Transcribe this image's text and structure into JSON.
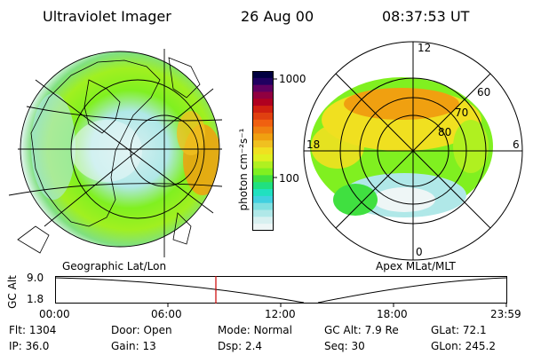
{
  "header": {
    "instrument": "Ultraviolet Imager",
    "date": "26 Aug 00",
    "time": "08:37:53 UT"
  },
  "left_panel": {
    "label": "Geographic Lat/Lon"
  },
  "right_panel": {
    "label": "Apex MLat/MLT",
    "mlt_labels": {
      "top": "12",
      "left": "18",
      "right": "6",
      "bottom": "0"
    },
    "lat_labels": [
      "60",
      "70",
      "80"
    ]
  },
  "colorbar": {
    "unit_label": "photon cm⁻²s⁻¹",
    "tick_labels": [
      "1000",
      "100"
    ],
    "colors": [
      "#000040",
      "#200060",
      "#600060",
      "#900040",
      "#b00020",
      "#d02010",
      "#e04010",
      "#f06010",
      "#f08010",
      "#f0a010",
      "#f0c020",
      "#f0e020",
      "#e0f020",
      "#b0f020",
      "#80f020",
      "#40e040",
      "#20e080",
      "#20e0c0",
      "#40d0e0",
      "#80e0e0",
      "#b0e8e8",
      "#d8f0f0",
      "#eef6f6"
    ]
  },
  "altitude_strip": {
    "axis_label": "GC Alt",
    "y_ticks": [
      "9.0",
      "1.8"
    ],
    "x_ticks": [
      "00:00",
      "06:00",
      "12:00",
      "18:00",
      "23:59"
    ],
    "marker_color": "#cc0000"
  },
  "info": {
    "row1": [
      {
        "label": "Flt:",
        "value": "1304"
      },
      {
        "label": "Door:",
        "value": "Open"
      },
      {
        "label": "Mode:",
        "value": "Normal"
      },
      {
        "label": "GC Alt:",
        "value": "7.9 Re"
      },
      {
        "label": "GLat:",
        "value": "72.1"
      }
    ],
    "row2": [
      {
        "label": "IP:",
        "value": "36.0"
      },
      {
        "label": "Gain:",
        "value": "13"
      },
      {
        "label": "Dsp:",
        "value": "2.4"
      },
      {
        "label": "Seq:",
        "value": "30"
      },
      {
        "label": "GLon:",
        "value": "245.2"
      }
    ]
  }
}
